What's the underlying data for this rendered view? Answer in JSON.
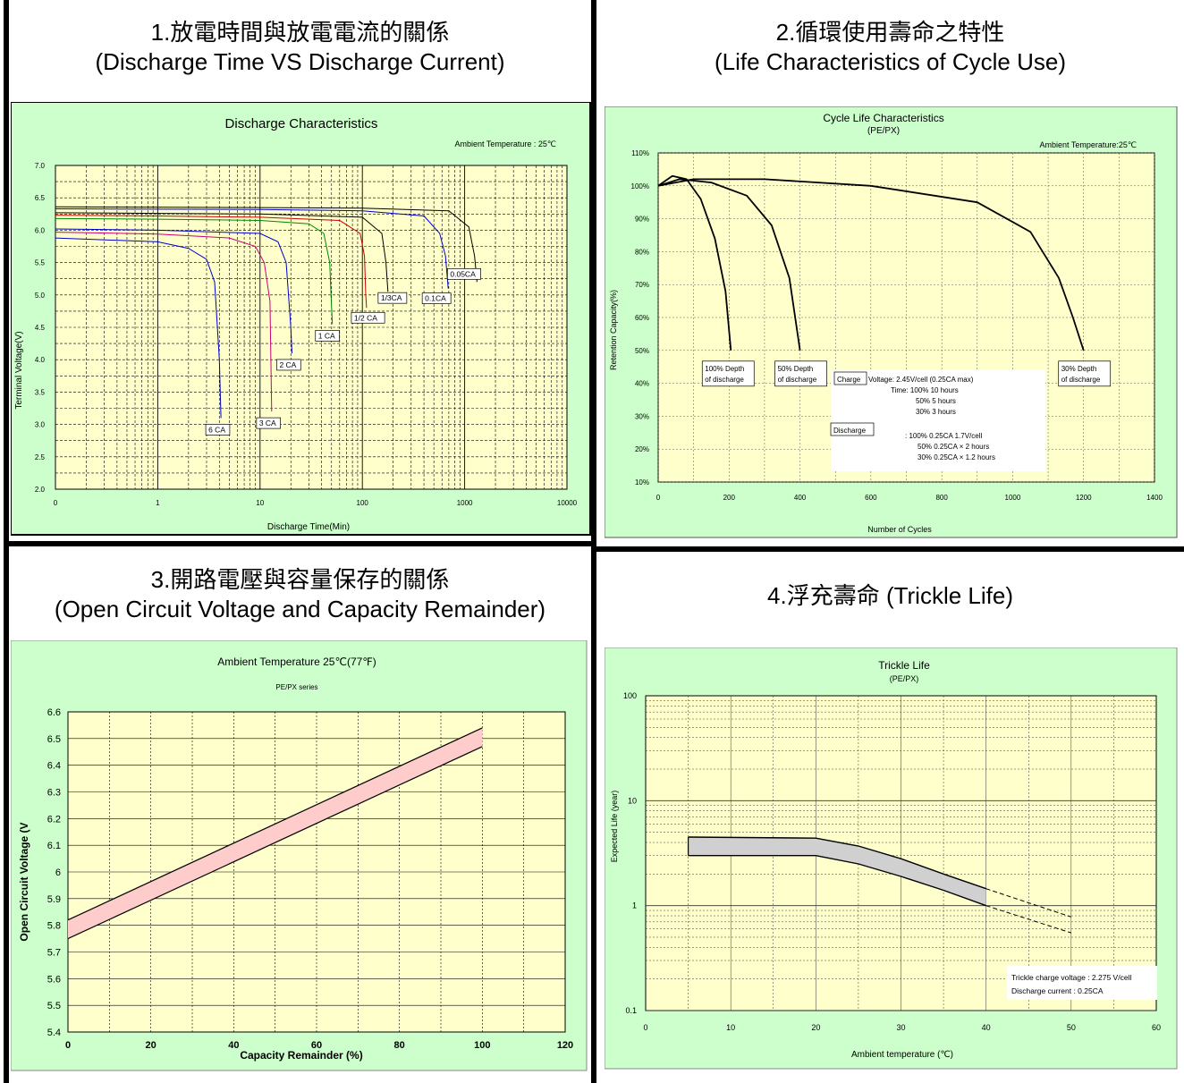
{
  "panels": [
    {
      "title_num": "1.",
      "title_zh": "放電時間與放電電流的關係",
      "title_en": "(Discharge Time VS Discharge Current)"
    },
    {
      "title_num": "2.",
      "title_zh": "循環使用壽命之特性",
      "title_en": "(Life Characteristics of Cycle Use)"
    },
    {
      "title_num": "3.",
      "title_zh": "開路電壓與容量保存的關係",
      "title_en": "(Open Circuit Voltage and Capacity Remainder)"
    },
    {
      "title_num": "4.",
      "title_zh": "浮充壽命",
      "title_en": "(Trickle Life)"
    }
  ],
  "colors": {
    "chart_bg_green": "#ccffcc",
    "plot_bg_yellow": "#ffffcc",
    "pink_band": "#ffcccc",
    "grey_band": "#d0d0d0"
  },
  "chart_data": [
    {
      "type": "line",
      "title": "Discharge Characteristics",
      "note": "Ambient Temperature : 25℃",
      "xlabel": "Discharge Time(Min)",
      "ylabel": "Terminal Voltage(V)",
      "x_scale": "log",
      "xlim": [
        0.1,
        10000
      ],
      "ylim": [
        2.0,
        7.0
      ],
      "x_ticks": [
        "0",
        "1",
        "10",
        "100",
        "1000",
        "10000"
      ],
      "y_ticks": [
        "2.0",
        "2.5",
        "3.0",
        "3.5",
        "4.0",
        "4.5",
        "5.0",
        "5.5",
        "6.0",
        "6.5",
        "7.0"
      ],
      "grid": true,
      "series": [
        {
          "name": "6 CA",
          "color": "#0000cc",
          "points": [
            [
              0.1,
              5.88
            ],
            [
              1,
              5.82
            ],
            [
              2,
              5.72
            ],
            [
              3,
              5.55
            ],
            [
              3.6,
              5.2
            ],
            [
              4,
              4.0
            ],
            [
              4.15,
              3.1
            ]
          ]
        },
        {
          "name": "3 CA",
          "color": "#cc0077",
          "points": [
            [
              0.1,
              5.97
            ],
            [
              1,
              5.94
            ],
            [
              5,
              5.88
            ],
            [
              9,
              5.75
            ],
            [
              11,
              5.5
            ],
            [
              12.5,
              4.9
            ],
            [
              13,
              3.2
            ]
          ]
        },
        {
          "name": "2 CA",
          "color": "#0000cc",
          "points": [
            [
              0.1,
              6.02
            ],
            [
              1,
              6.0
            ],
            [
              10,
              5.95
            ],
            [
              15,
              5.82
            ],
            [
              18,
              5.5
            ],
            [
              20,
              4.5
            ],
            [
              20.5,
              4.1
            ]
          ]
        },
        {
          "name": "1 CA",
          "color": "#008800",
          "points": [
            [
              0.1,
              6.18
            ],
            [
              1,
              6.17
            ],
            [
              10,
              6.15
            ],
            [
              30,
              6.1
            ],
            [
              42,
              5.95
            ],
            [
              48,
              5.5
            ],
            [
              50,
              4.8
            ],
            [
              51,
              4.55
            ]
          ]
        },
        {
          "name": "1/2 CA",
          "color": "#cc0000",
          "points": [
            [
              0.1,
              6.23
            ],
            [
              1,
              6.22
            ],
            [
              10,
              6.2
            ],
            [
              60,
              6.15
            ],
            [
              95,
              5.95
            ],
            [
              105,
              5.6
            ],
            [
              108,
              5.0
            ],
            [
              110,
              4.8
            ]
          ]
        },
        {
          "name": "1/3CA",
          "color": "#000000",
          "points": [
            [
              0.1,
              6.27
            ],
            [
              1,
              6.26
            ],
            [
              10,
              6.25
            ],
            [
              100,
              6.2
            ],
            [
              155,
              5.95
            ],
            [
              170,
              5.5
            ],
            [
              178,
              5.05
            ]
          ]
        },
        {
          "name": "0.1CA",
          "color": "#0000cc",
          "points": [
            [
              0.1,
              6.33
            ],
            [
              10,
              6.32
            ],
            [
              100,
              6.3
            ],
            [
              400,
              6.22
            ],
            [
              570,
              5.95
            ],
            [
              650,
              5.6
            ],
            [
              690,
              5.1
            ]
          ]
        },
        {
          "name": "0.05CA",
          "color": "#000000",
          "points": [
            [
              0.1,
              6.36
            ],
            [
              10,
              6.35
            ],
            [
              100,
              6.34
            ],
            [
              700,
              6.3
            ],
            [
              1100,
              6.05
            ],
            [
              1250,
              5.6
            ],
            [
              1320,
              5.2
            ]
          ]
        }
      ]
    },
    {
      "type": "line",
      "title": "Cycle Life Characteristics",
      "subtitle": "(PE/PX)",
      "note": "Ambient Temperature:25℃",
      "xlabel": "Number of Cycles",
      "ylabel": "Retention Capacity(%)",
      "xlim": [
        0,
        1400
      ],
      "ylim": [
        10,
        110
      ],
      "x_ticks": [
        "0",
        "200",
        "400",
        "600",
        "800",
        "1000",
        "1200",
        "1400"
      ],
      "y_ticks": [
        "10%",
        "20%",
        "30%",
        "40%",
        "50%",
        "60%",
        "70%",
        "80%",
        "90%",
        "100%",
        "110%"
      ],
      "grid": true,
      "series": [
        {
          "name": "100% Depth of discharge",
          "points": [
            [
              0,
              100
            ],
            [
              40,
              103
            ],
            [
              80,
              102
            ],
            [
              120,
              96
            ],
            [
              160,
              84
            ],
            [
              190,
              68
            ],
            [
              205,
              50
            ]
          ]
        },
        {
          "name": "50% Depth of discharge",
          "points": [
            [
              0,
              100
            ],
            [
              60,
              102
            ],
            [
              150,
              101
            ],
            [
              250,
              97
            ],
            [
              320,
              88
            ],
            [
              370,
              72
            ],
            [
              400,
              50
            ]
          ]
        },
        {
          "name": "30% Depth of discharge",
          "points": [
            [
              0,
              100
            ],
            [
              100,
              102
            ],
            [
              300,
              102
            ],
            [
              600,
              100
            ],
            [
              900,
              95
            ],
            [
              1050,
              86
            ],
            [
              1130,
              72
            ],
            [
              1170,
              60
            ],
            [
              1200,
              50
            ]
          ]
        }
      ],
      "conditions": [
        {
          "label": "Charge",
          "lines": [
            "Voltage: 2.45V/cell (0.25CA max)",
            "Time: 100%   10 hours",
            "50%    5 hours",
            "30%    3 hours"
          ]
        },
        {
          "label": "Discharge",
          "lines": [
            ": 100%   0.25CA 1.7V/cell",
            "50%   0.25CA × 2 hours",
            "30%   0.25CA × 1.2 hours"
          ]
        }
      ]
    },
    {
      "type": "area",
      "title": "Ambient Temperature 25℃(77℉)",
      "subtitle": "PE/PX series",
      "xlabel": "Capacity Remainder (%)",
      "ylabel": "Open Circuit Voltage (V",
      "xlim": [
        0,
        120
      ],
      "ylim": [
        5.4,
        6.6
      ],
      "x_ticks": [
        "0",
        "20",
        "40",
        "60",
        "80",
        "100",
        "120"
      ],
      "y_ticks": [
        "5.4",
        "5.5",
        "5.6",
        "5.7",
        "5.8",
        "5.9",
        "6",
        "6.1",
        "6.2",
        "6.3",
        "6.4",
        "6.5",
        "6.6"
      ],
      "grid": true,
      "series": [
        {
          "name": "upper",
          "x": [
            0,
            100
          ],
          "values": [
            5.82,
            6.54
          ]
        },
        {
          "name": "lower",
          "x": [
            0,
            100
          ],
          "values": [
            5.75,
            6.47
          ]
        }
      ]
    },
    {
      "type": "area",
      "title": "Trickle Life",
      "subtitle": "(PE/PX)",
      "xlabel": "Ambient temperature (℃)",
      "ylabel": "Expected Life (year)",
      "y_scale": "log",
      "xlim": [
        0,
        60
      ],
      "ylim": [
        0.1,
        100
      ],
      "x_ticks": [
        "0",
        "10",
        "20",
        "30",
        "40",
        "50",
        "60"
      ],
      "y_ticks": [
        "0.1",
        "1",
        "10",
        "100"
      ],
      "grid": true,
      "series": [
        {
          "name": "upper",
          "points": [
            [
              5,
              4.5
            ],
            [
              20,
              4.4
            ],
            [
              25,
              3.7
            ],
            [
              30,
              2.8
            ],
            [
              35,
              2.0
            ],
            [
              40,
              1.45
            ]
          ]
        },
        {
          "name": "lower",
          "points": [
            [
              5,
              3.0
            ],
            [
              20,
              3.0
            ],
            [
              25,
              2.5
            ],
            [
              30,
              1.9
            ],
            [
              35,
              1.4
            ],
            [
              40,
              1.0
            ]
          ]
        },
        {
          "name": "upper extrapolated",
          "points": [
            [
              40,
              1.45
            ],
            [
              50,
              0.78
            ]
          ]
        },
        {
          "name": "lower extrapolated",
          "points": [
            [
              40,
              1.0
            ],
            [
              50,
              0.55
            ]
          ]
        }
      ],
      "annotations": [
        "Trickle charge voltage : 2.275 V/cell",
        "Discharge current : 0.25CA"
      ]
    }
  ]
}
